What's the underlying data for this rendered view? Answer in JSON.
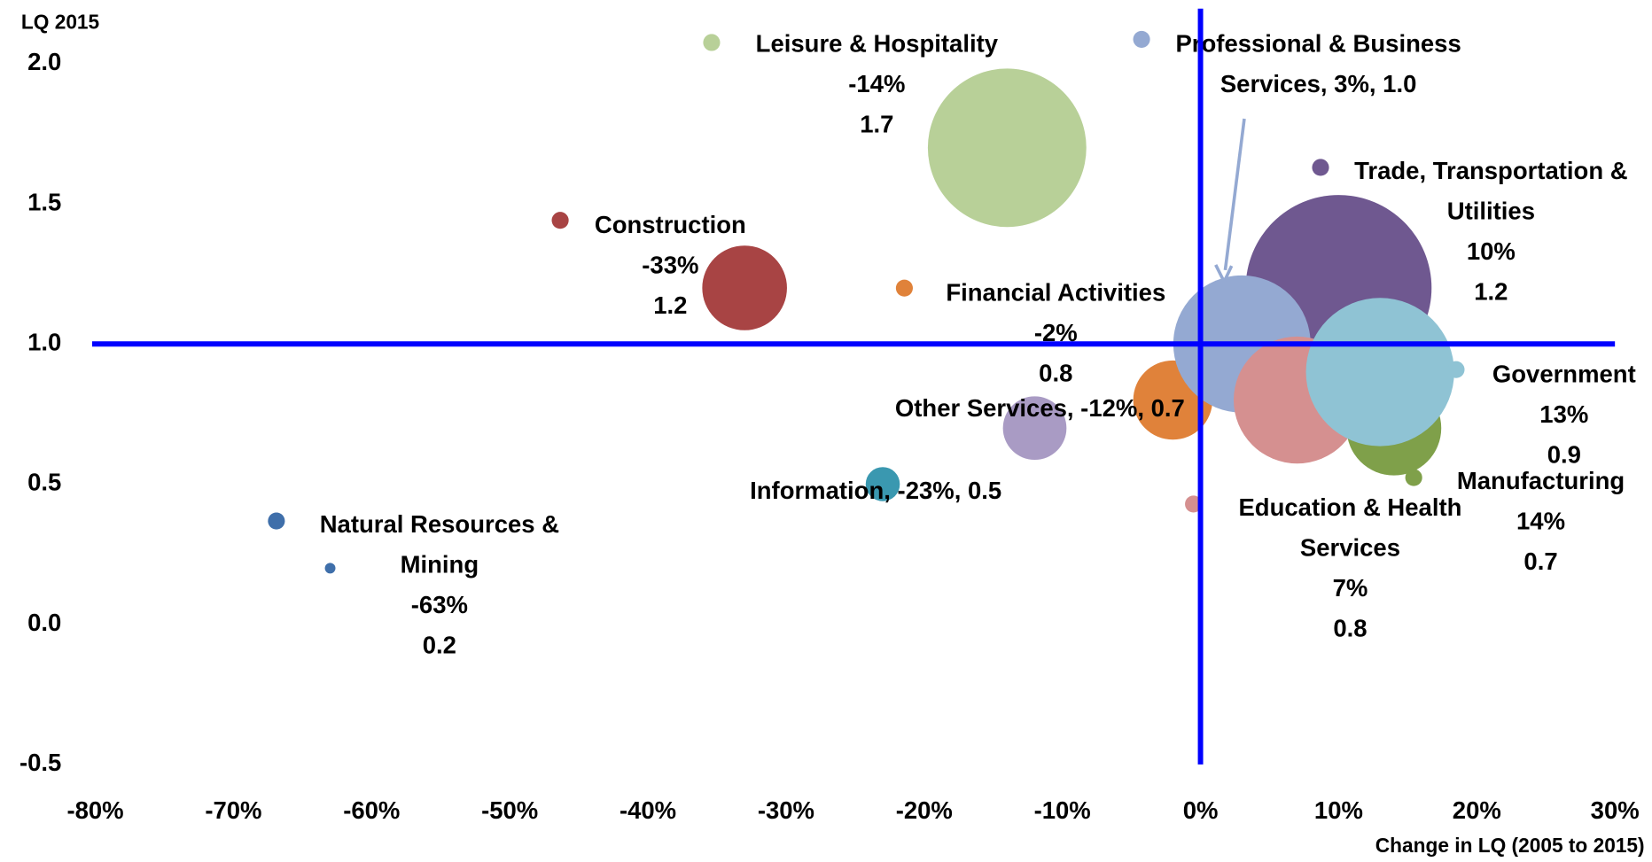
{
  "chart_data": {
    "type": "bubble",
    "y_label": "LQ 2015",
    "x_label": "Change in LQ (2005 to 2015)",
    "xlim": [
      -80,
      30
    ],
    "xticks": [
      {
        "value": -80,
        "label": "-80%"
      },
      {
        "value": -70,
        "label": "-70%"
      },
      {
        "value": -60,
        "label": "-60%"
      },
      {
        "value": -50,
        "label": "-50%"
      },
      {
        "value": -40,
        "label": "-40%"
      },
      {
        "value": -30,
        "label": "-30%"
      },
      {
        "value": -20,
        "label": "-20%"
      },
      {
        "value": -10,
        "label": "-10%"
      },
      {
        "value": 0,
        "label": "0%"
      },
      {
        "value": 10,
        "label": "10%"
      },
      {
        "value": 20,
        "label": "20%"
      },
      {
        "value": 30,
        "label": "30%"
      }
    ],
    "ylim": [
      -0.5,
      2.0
    ],
    "yticks": [
      -0.5,
      {
        "value": 0,
        "label": "0.0"
      },
      0.5,
      {
        "value": 1,
        "label": "1.0"
      },
      1.5,
      {
        "value": 2,
        "label": "2.0"
      }
    ],
    "vline": 0,
    "hline": 1,
    "series": [
      {
        "name": "Leisure & Hospitality",
        "color": "#b8d098",
        "x": -14,
        "y": 1.7,
        "size": 56,
        "x_label": "-14%",
        "y_label": "1.7"
      },
      {
        "name": "Construction",
        "color": "#a84444",
        "x": -33,
        "y": 1.2,
        "size": 16,
        "x_label": "-33%",
        "y_label": "1.2"
      },
      {
        "name": "Financial Activities",
        "color": "#e0823a",
        "x": -2,
        "y": 0.8,
        "size": 14,
        "x_label": "-2%",
        "y_label": "0.8"
      },
      {
        "name": "Other Services",
        "color": "#a99bc4",
        "x": -12,
        "y": 0.7,
        "size": 9,
        "x_label": "-12%",
        "y_label": "0.7"
      },
      {
        "name": "Information",
        "color": "#3a98b0",
        "x": -23,
        "y": 0.5,
        "size": 2.6,
        "x_label": "-23%",
        "y_label": "0.5"
      },
      {
        "name": "Natural Resources & Mining",
        "color": "#3f6faa",
        "x": -63,
        "y": 0.2,
        "size": 0.25,
        "x_label": "-63%",
        "y_label": "0.2"
      },
      {
        "name": "Trade, Transportation & Utilities",
        "color": "#6f5890",
        "x": 10,
        "y": 1.2,
        "size": 77,
        "x_label": "10%",
        "y_label": "1.2"
      },
      {
        "name": "Manufacturing",
        "color": "#7fa04a",
        "x": 14,
        "y": 0.7,
        "size": 20,
        "x_label": "14%",
        "y_label": "0.7"
      },
      {
        "name": "Professional & Business Services",
        "color": "#94a9d2",
        "x": 3,
        "y": 1,
        "size": 42,
        "x_label": "3%",
        "y_label": "1.0"
      },
      {
        "name": "Education & Health Services",
        "color": "#d59090",
        "x": 7,
        "y": 0.8,
        "size": 36,
        "x_label": "7%",
        "y_label": "0.8"
      },
      {
        "name": "Government",
        "color": "#8fc3d4",
        "x": 13,
        "y": 0.9,
        "size": 49,
        "x_label": "13%",
        "y_label": "0.9"
      }
    ]
  }
}
